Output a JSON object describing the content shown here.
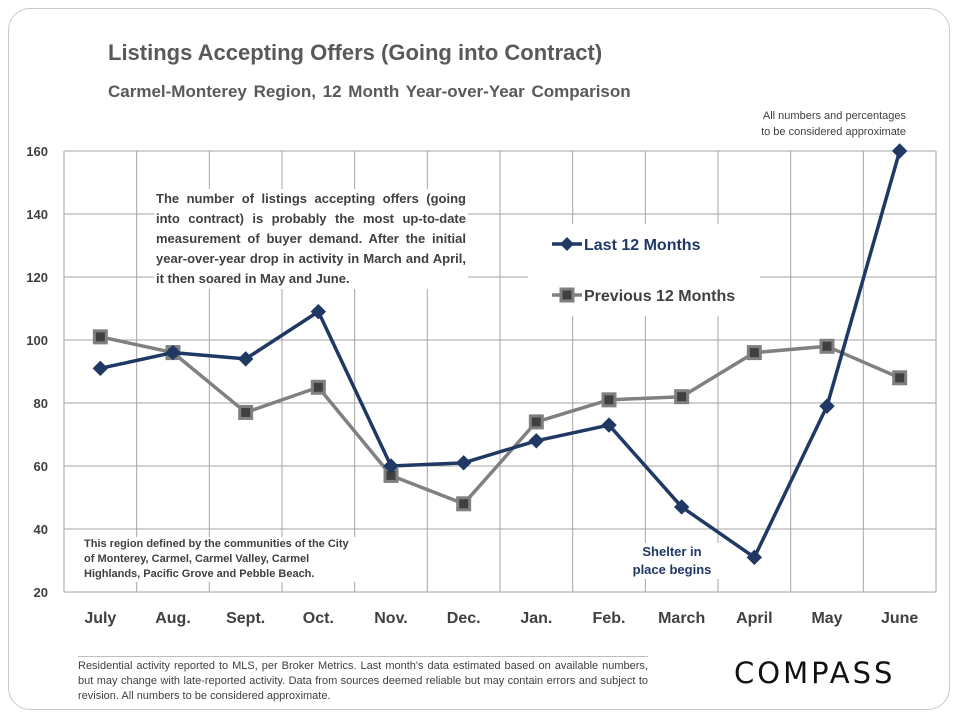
{
  "page": {
    "title": "Listings Accepting Offers (Going into Contract)",
    "subtitle": "Carmel-Monterey  Region, 12 Month  Year-over-Year  Comparison",
    "approx_note_line1": "All numbers and percentages",
    "approx_note_line2": "to be considered approximate",
    "annotation": "The number of listings accepting offers (going into contract) is probably the most up-to-date measurement of buyer demand. After the initial year-over-year drop in activity in March and April, it then soared in May and June.",
    "region_note": "This region defined by the communities of the City of Monterey, Carmel, Carmel Valley, Carmel Highlands, Pacific Grove and Pebble Beach.",
    "shelter_line1": "Shelter in",
    "shelter_line2": "place begins",
    "footer": "Residential activity reported to MLS, per Broker Metrics. Last month's data estimated based on available numbers, but may change with late-reported activity. Data from sources deemed reliable but may contain errors and subject to revision. All numbers to be considered approximate.",
    "logo": "COMPASS"
  },
  "colors": {
    "last": "#1f3864",
    "previous": "#808080",
    "marker_fill": "#404040",
    "grid": "#a6a6a6"
  },
  "chart_data": {
    "type": "line",
    "title": "Listings Accepting Offers (Going into Contract)",
    "categories": [
      "July",
      "Aug.",
      "Sept.",
      "Oct.",
      "Nov.",
      "Dec.",
      "Jan.",
      "Feb.",
      "March",
      "April",
      "May",
      "June"
    ],
    "series": [
      {
        "name": "Last 12 Months",
        "values": [
          91,
          96,
          94,
          109,
          60,
          61,
          68,
          73,
          47,
          31,
          79,
          160
        ]
      },
      {
        "name": "Previous 12 Months",
        "values": [
          101,
          96,
          77,
          85,
          57,
          48,
          74,
          81,
          82,
          96,
          98,
          88
        ]
      }
    ],
    "ylim": [
      20,
      160
    ],
    "yticks": [
      20,
      40,
      60,
      80,
      100,
      120,
      140,
      160
    ],
    "xlabel": "",
    "ylabel": "",
    "legend_position": "top-right",
    "grid": true
  }
}
